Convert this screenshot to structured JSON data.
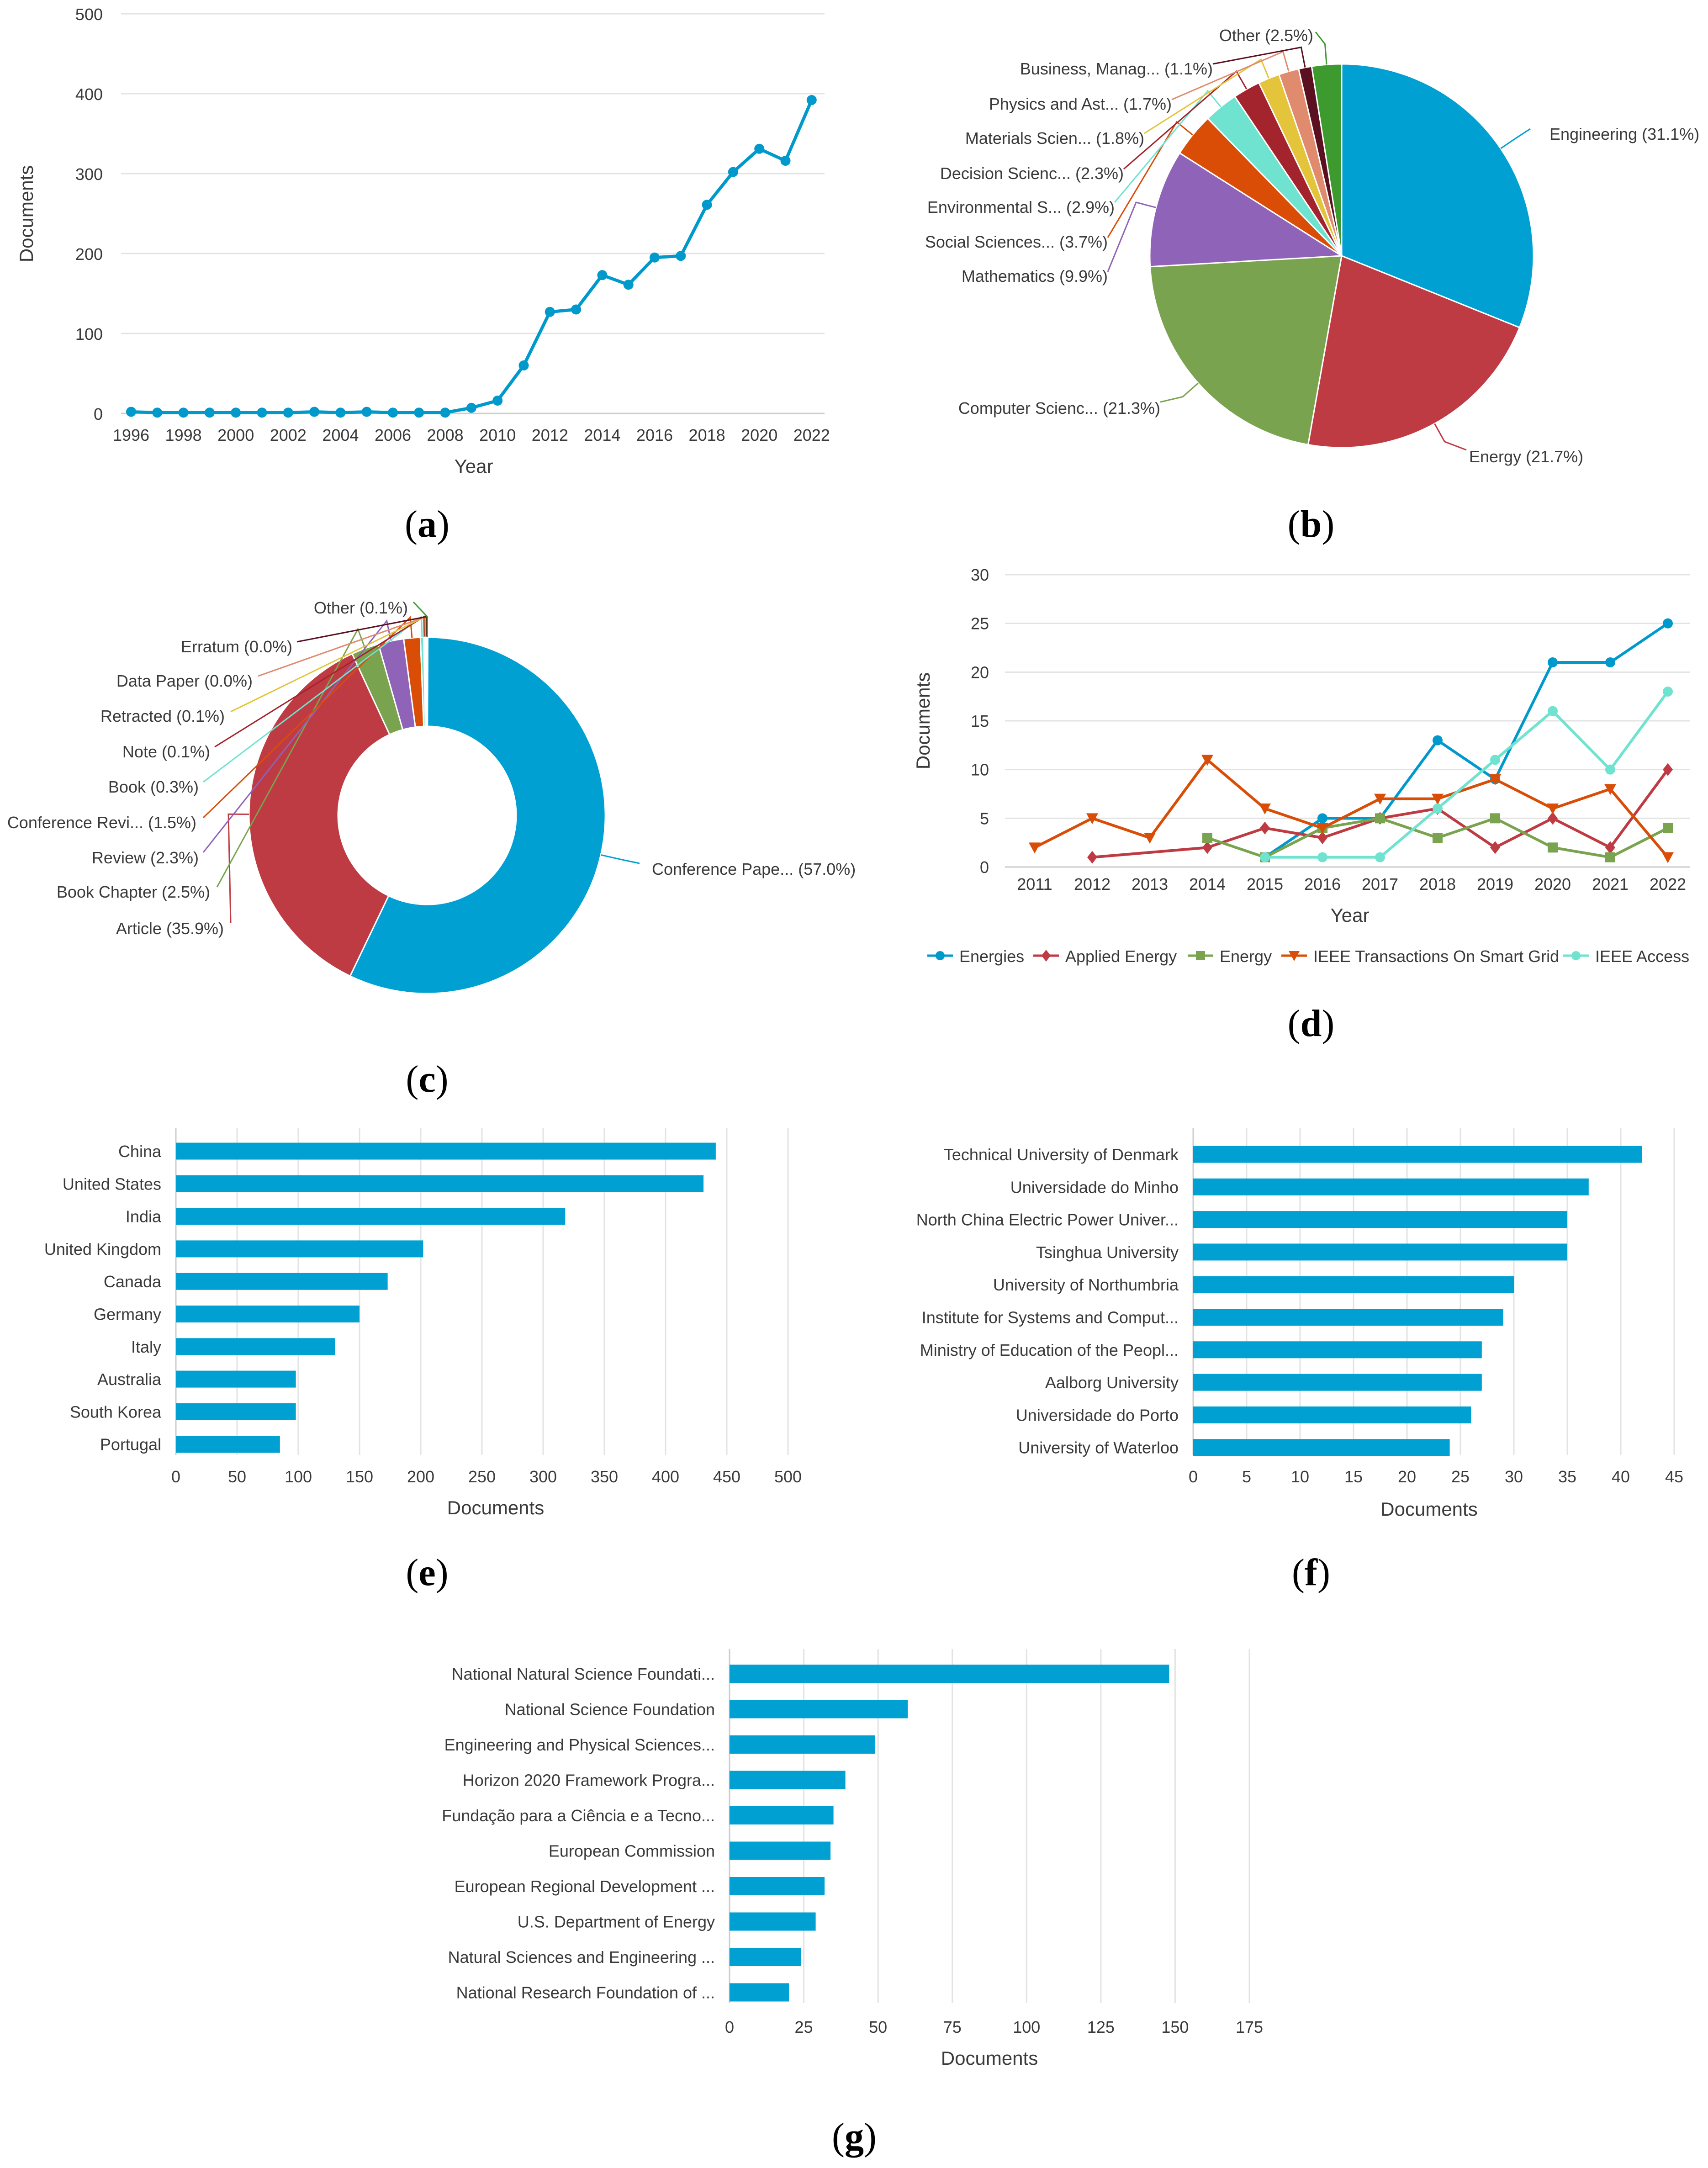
{
  "colors": {
    "grid": "#e3e3e3",
    "axis": "#cccccc",
    "text": "#3a3a3a",
    "bar": "#00a0d2"
  },
  "chart_data": [
    {
      "id": "a",
      "caption": "a",
      "type": "line",
      "xlabel": "Year",
      "ylabel": "Documents",
      "ylim": [
        0,
        500
      ],
      "yticks": [
        "0",
        "100",
        "200",
        "300",
        "400",
        "500"
      ],
      "xticks": [
        "1996",
        "1998",
        "2000",
        "2002",
        "2004",
        "2006",
        "2008",
        "2010",
        "2012",
        "2014",
        "2016",
        "2018",
        "2020",
        "2022"
      ],
      "grid": true,
      "series": [
        {
          "color": "#0099cc",
          "x": [
            1996,
            1997,
            1998,
            1999,
            2000,
            2001,
            2002,
            2003,
            2004,
            2005,
            2006,
            2007,
            2008,
            2009,
            2010,
            2011,
            2012,
            2013,
            2014,
            2015,
            2016,
            2017,
            2018,
            2019,
            2020,
            2021,
            2022
          ],
          "y": [
            2,
            1,
            1,
            1,
            1,
            1,
            1,
            2,
            1,
            2,
            1,
            1,
            1,
            7,
            16,
            60,
            127,
            130,
            173,
            161,
            195,
            197,
            261,
            302,
            331,
            316,
            392
          ]
        }
      ]
    },
    {
      "id": "b",
      "caption": "b",
      "type": "pie",
      "slices": [
        {
          "label": "Engineering (31.1%)",
          "value": 31.1,
          "color": "#00a0d2"
        },
        {
          "label": "Energy (21.7%)",
          "value": 21.7,
          "color": "#bf3b43"
        },
        {
          "label": "Computer Scienc... (21.3%)",
          "value": 21.3,
          "color": "#7aa34f"
        },
        {
          "label": "Mathematics (9.9%)",
          "value": 9.9,
          "color": "#8e63b8"
        },
        {
          "label": "Social Sciences... (3.7%)",
          "value": 3.7,
          "color": "#d94d06"
        },
        {
          "label": "Environmental S... (2.9%)",
          "value": 2.9,
          "color": "#6fe3d0"
        },
        {
          "label": "Decision Scienc... (2.3%)",
          "value": 2.3,
          "color": "#a3242d"
        },
        {
          "label": "Materials Scien... (1.8%)",
          "value": 1.8,
          "color": "#e3c43a"
        },
        {
          "label": "Physics and Ast... (1.7%)",
          "value": 1.7,
          "color": "#e08a6e"
        },
        {
          "label": "Business, Manag... (1.1%)",
          "value": 1.1,
          "color": "#5a1020"
        },
        {
          "label": "Other (2.5%)",
          "value": 2.5,
          "color": "#3d9a2f"
        }
      ]
    },
    {
      "id": "c",
      "caption": "c",
      "type": "pie",
      "donut": true,
      "slices": [
        {
          "label": "Conference Pape... (57.0%)",
          "value": 57.0,
          "color": "#00a0d2"
        },
        {
          "label": "Article (35.9%)",
          "value": 35.9,
          "color": "#bf3b43"
        },
        {
          "label": "Book Chapter (2.5%)",
          "value": 2.5,
          "color": "#7aa34f"
        },
        {
          "label": "Review (2.3%)",
          "value": 2.3,
          "color": "#8e63b8"
        },
        {
          "label": "Conference Revi... (1.5%)",
          "value": 1.5,
          "color": "#d94d06"
        },
        {
          "label": "Book (0.3%)",
          "value": 0.3,
          "color": "#6fe3d0"
        },
        {
          "label": "Note (0.1%)",
          "value": 0.1,
          "color": "#a3242d"
        },
        {
          "label": "Retracted (0.1%)",
          "value": 0.1,
          "color": "#e3c43a"
        },
        {
          "label": "Data Paper (0.0%)",
          "value": 0.0,
          "color": "#e08a6e"
        },
        {
          "label": "Erratum (0.0%)",
          "value": 0.0,
          "color": "#5a1020"
        },
        {
          "label": "Other (0.1%)",
          "value": 0.1,
          "color": "#3d9a2f"
        }
      ]
    },
    {
      "id": "d",
      "caption": "d",
      "type": "line",
      "xlabel": "Year",
      "ylabel": "Documents",
      "ylim": [
        0,
        30
      ],
      "yticks": [
        "0",
        "5",
        "10",
        "15",
        "20",
        "25",
        "30"
      ],
      "xticks": [
        "2011",
        "2012",
        "2013",
        "2014",
        "2015",
        "2016",
        "2017",
        "2018",
        "2019",
        "2020",
        "2021",
        "2022"
      ],
      "grid": true,
      "legend": "bottom",
      "series": [
        {
          "name": "Energies",
          "color": "#0099cc",
          "marker": "circle",
          "x": [
            2015,
            2016,
            2017,
            2018,
            2019,
            2020,
            2021,
            2022
          ],
          "y": [
            1,
            5,
            5,
            13,
            9,
            21,
            21,
            25
          ]
        },
        {
          "name": "Applied Energy",
          "color": "#bf3b43",
          "marker": "diamond",
          "x": [
            2012,
            2014,
            2015,
            2016,
            2017,
            2018,
            2019,
            2020,
            2021,
            2022
          ],
          "y": [
            1,
            2,
            4,
            3,
            5,
            6,
            2,
            5,
            2,
            10
          ]
        },
        {
          "name": "Energy",
          "color": "#7aa34f",
          "marker": "square",
          "x": [
            2014,
            2015,
            2016,
            2017,
            2018,
            2019,
            2020,
            2021,
            2022
          ],
          "y": [
            3,
            1,
            4,
            5,
            3,
            5,
            2,
            1,
            4
          ]
        },
        {
          "name": "IEEE Transactions On Smart Grid",
          "color": "#d94d06",
          "marker": "triangle-down",
          "x": [
            2011,
            2012,
            2013,
            2014,
            2015,
            2016,
            2017,
            2018,
            2019,
            2020,
            2021,
            2022
          ],
          "y": [
            2,
            5,
            3,
            11,
            6,
            4,
            7,
            7,
            9,
            6,
            8,
            1
          ]
        },
        {
          "name": "IEEE Access",
          "color": "#6fe3d0",
          "marker": "circle",
          "x": [
            2015,
            2016,
            2017,
            2018,
            2019,
            2020,
            2021,
            2022
          ],
          "y": [
            1,
            1,
            1,
            6,
            11,
            16,
            10,
            18
          ]
        }
      ]
    },
    {
      "id": "e",
      "caption": "e",
      "type": "bar",
      "orientation": "horizontal",
      "xlabel": "Documents",
      "xlim": [
        0,
        500
      ],
      "xticks": [
        "0",
        "50",
        "100",
        "150",
        "200",
        "250",
        "300",
        "350",
        "400",
        "450",
        "500"
      ],
      "categories": [
        "China",
        "United States",
        "India",
        "United Kingdom",
        "Canada",
        "Germany",
        "Italy",
        "Australia",
        "South Korea",
        "Portugal"
      ],
      "values": [
        441,
        431,
        318,
        202,
        173,
        150,
        130,
        98,
        98,
        85
      ]
    },
    {
      "id": "f",
      "caption": "f",
      "type": "bar",
      "orientation": "horizontal",
      "xlabel": "Documents",
      "xlim": [
        0,
        45
      ],
      "xticks": [
        "0",
        "5",
        "10",
        "15",
        "20",
        "25",
        "30",
        "35",
        "40",
        "45"
      ],
      "categories": [
        "Technical University of Denmark",
        "Universidade do Minho",
        "North China Electric Power Univer...",
        "Tsinghua University",
        "University of Northumbria",
        "Institute for Systems and Comput...",
        "Ministry of Education of the Peopl...",
        "Aalborg University",
        "Universidade do Porto",
        "University of Waterloo"
      ],
      "values": [
        42,
        37,
        35,
        35,
        30,
        29,
        27,
        27,
        26,
        24
      ]
    },
    {
      "id": "g",
      "caption": "g",
      "type": "bar",
      "orientation": "horizontal",
      "xlabel": "Documents",
      "xlim": [
        0,
        175
      ],
      "xticks": [
        "0",
        "25",
        "50",
        "75",
        "100",
        "125",
        "150",
        "175"
      ],
      "categories": [
        "National Natural Science Foundati...",
        "National Science Foundation",
        "Engineering and Physical Sciences...",
        "Horizon 2020 Framework Progra...",
        "Fundação para a Ciência e a Tecno...",
        "European Commission",
        "European Regional Development ...",
        "U.S. Department of Energy",
        "Natural Sciences and Engineering ...",
        "National Research Foundation of ..."
      ],
      "values": [
        148,
        60,
        49,
        39,
        35,
        34,
        32,
        29,
        24,
        20
      ]
    }
  ]
}
